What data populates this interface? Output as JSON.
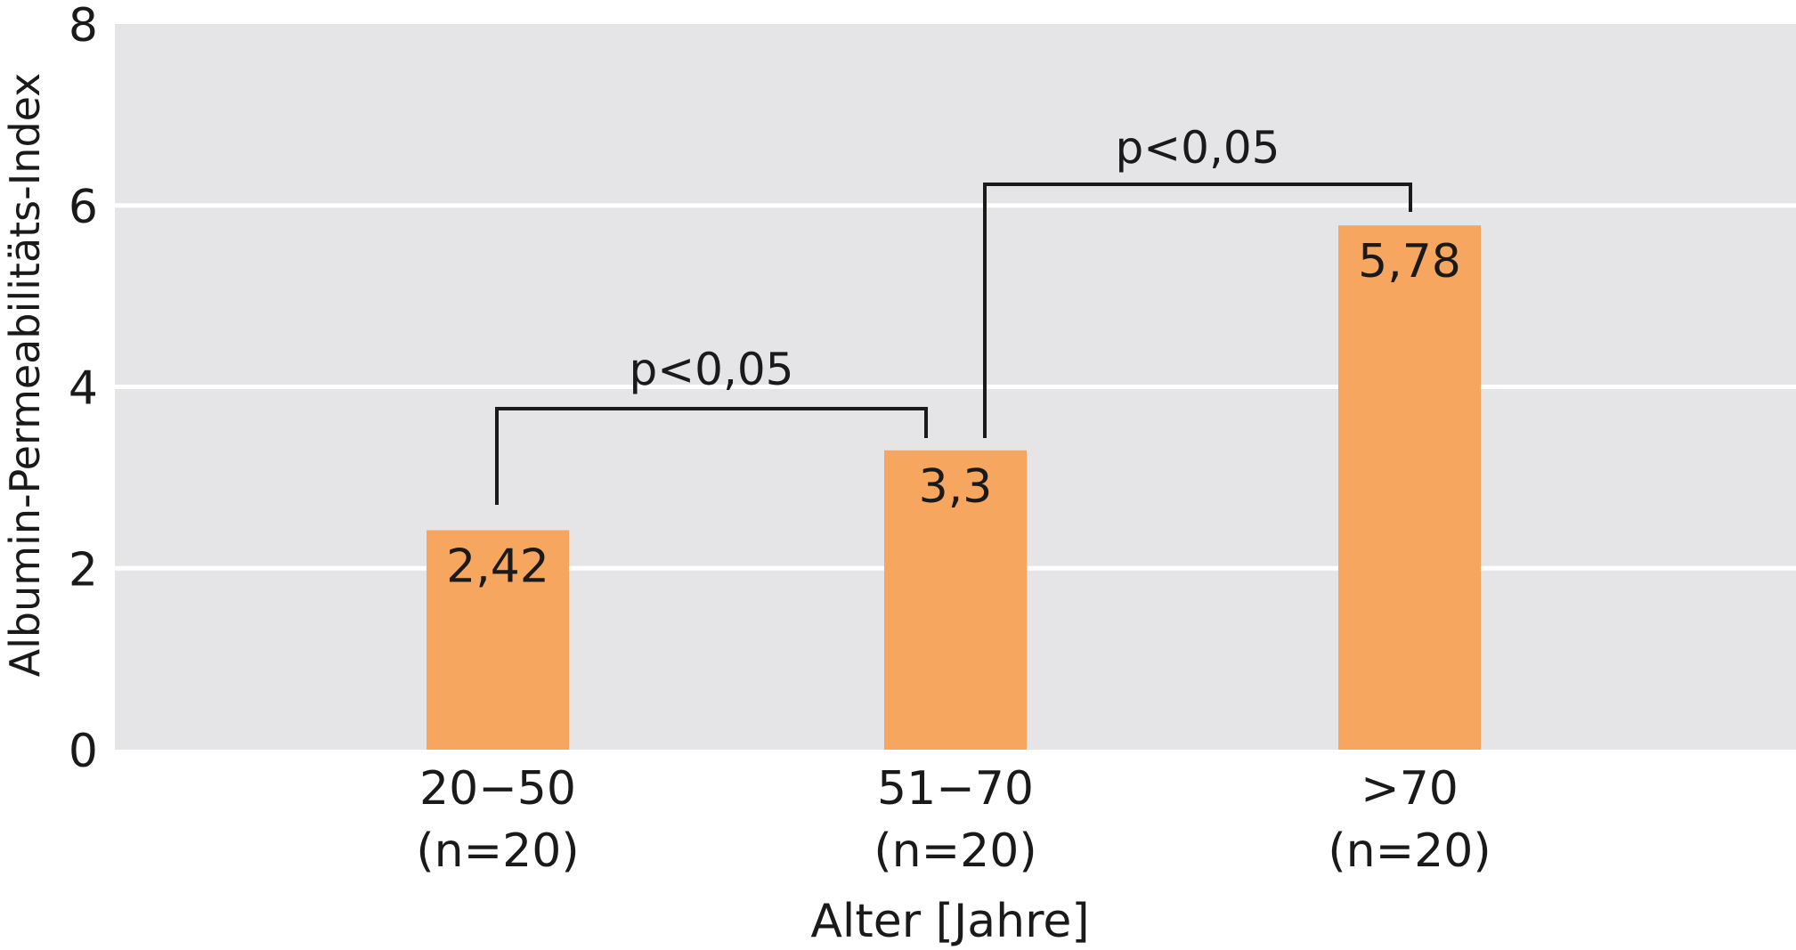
{
  "chart_data": {
    "type": "bar",
    "categories": [
      "20−50",
      "51−70",
      ">70"
    ],
    "category_sublabels": [
      "(n=20)",
      "(n=20)",
      "(n=20)"
    ],
    "values": [
      2.42,
      3.3,
      5.78
    ],
    "value_labels": [
      "2,42",
      "3,3",
      "5,78"
    ],
    "title": "",
    "xlabel": "Alter [Jahre]",
    "ylabel": "Albumin-Permeabilitäts-Index",
    "ylim": [
      0,
      8
    ],
    "yticks": [
      0,
      2,
      4,
      6,
      8
    ],
    "ytick_labels": [
      "0",
      "2",
      "4",
      "6",
      "8"
    ],
    "grid": true,
    "legend": "none",
    "significance": [
      {
        "from": 0,
        "to": 1,
        "label": "p<0,05"
      },
      {
        "from": 1,
        "to": 2,
        "label": "p<0,05"
      }
    ],
    "colors": {
      "bar": "#f7a65f",
      "plot_bg": "#e5e5e7",
      "gridline": "#ffffff",
      "bracket": "#1a1a1a",
      "text": "#1a1a1a"
    }
  }
}
